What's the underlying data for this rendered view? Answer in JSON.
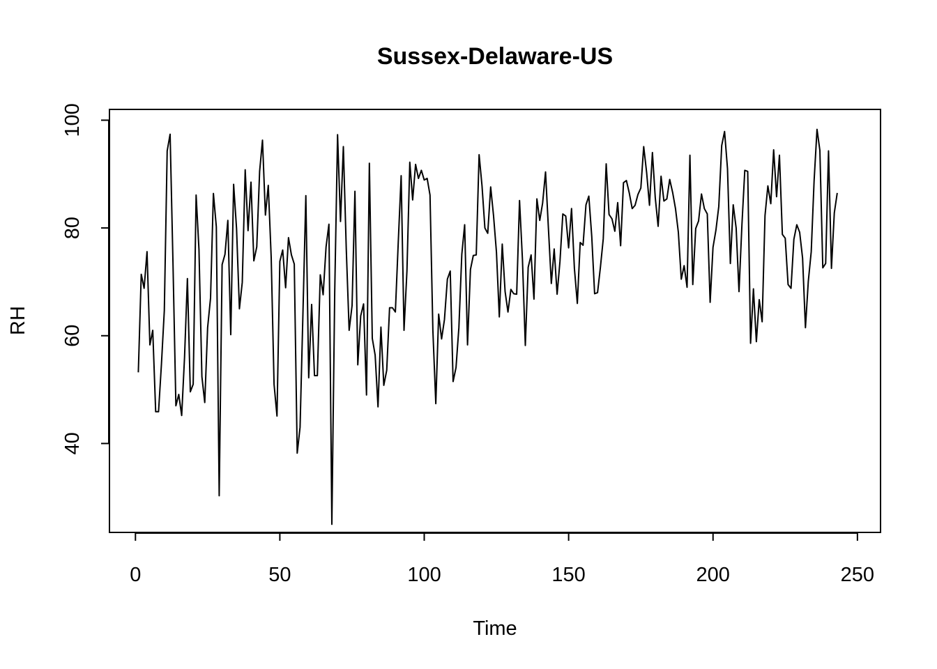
{
  "chart_data": {
    "type": "line",
    "title": "Sussex-Delaware-US",
    "xlabel": "Time",
    "ylabel": "RH",
    "xlim": [
      -9,
      258
    ],
    "ylim": [
      23.5,
      102
    ],
    "x_ticks": [
      0,
      50,
      100,
      150,
      200,
      250
    ],
    "y_ticks": [
      40,
      60,
      80,
      100
    ],
    "grid": false,
    "legend": "none",
    "line_color": "#000000",
    "series": [
      {
        "x_start": 1,
        "values": [
          53.2,
          71.4,
          68.8,
          75.6,
          58.3,
          61.0,
          45.9,
          45.9,
          54.8,
          64.7,
          94.3,
          97.4,
          73.6,
          47.0,
          49.1,
          45.2,
          56.0,
          70.6,
          49.6,
          51.0,
          86.1,
          76.0,
          52.4,
          47.6,
          61.5,
          67.0,
          86.4,
          80.2,
          30.3,
          73.2,
          75.1,
          81.4,
          60.2,
          88.1,
          79.9,
          65.0,
          69.9,
          90.8,
          79.5,
          88.5,
          73.9,
          76.5,
          90.5,
          96.3,
          82.4,
          87.9,
          74.5,
          51.0,
          45.1,
          73.8,
          75.9,
          68.9,
          78.2,
          75.0,
          73.3,
          38.2,
          43.0,
          64.0,
          86.0,
          52.2,
          65.8,
          52.6,
          52.6,
          71.3,
          67.6,
          76.5,
          80.7,
          25.0,
          68.0,
          97.3,
          81.2,
          95.1,
          76.0,
          61.0,
          65.6,
          86.8,
          54.6,
          63.7,
          65.9,
          49.0,
          92.0,
          59.5,
          56.4,
          46.8,
          61.6,
          50.8,
          53.6,
          65.2,
          65.2,
          64.4,
          77.2,
          89.7,
          61.0,
          72.0,
          92.2,
          85.2,
          91.8,
          89.2,
          90.7,
          88.9,
          89.2,
          86.1,
          61.0,
          47.4,
          64.0,
          59.4,
          63.0,
          70.5,
          72.0,
          51.5,
          54.1,
          61.5,
          75.1,
          80.6,
          58.3,
          72.3,
          74.9,
          75.0,
          93.6,
          87.8,
          80.0,
          79.0,
          87.6,
          82.3,
          75.5,
          63.5,
          77.0,
          68.2,
          64.4,
          68.6,
          67.8,
          67.7,
          85.1,
          74.1,
          58.2,
          72.7,
          75.0,
          66.8,
          85.4,
          81.4,
          84.6,
          90.4,
          80.0,
          69.7,
          76.1,
          67.7,
          73.8,
          82.6,
          82.2,
          76.3,
          83.6,
          72.5,
          66.0,
          77.3,
          76.8,
          84.3,
          85.9,
          78.4,
          67.8,
          68.0,
          72.7,
          78.0,
          91.9,
          82.5,
          81.7,
          79.4,
          84.7,
          76.7,
          88.4,
          88.8,
          86.5,
          83.6,
          84.2,
          86.2,
          87.4,
          95.1,
          90.3,
          84.2,
          94.0,
          85.6,
          80.3,
          89.6,
          85.0,
          85.4,
          89.0,
          86.6,
          83.6,
          79.2,
          70.5,
          73.0,
          69.0,
          93.5,
          69.5,
          79.9,
          81.3,
          86.3,
          83.6,
          82.6,
          66.2,
          76.4,
          79.6,
          84.0,
          95.3,
          97.9,
          91.0,
          73.4,
          84.3,
          80.0,
          68.2,
          80.6,
          90.7,
          90.5,
          58.6,
          68.7,
          58.9,
          66.7,
          62.6,
          82.3,
          87.8,
          84.5,
          94.5,
          85.8,
          93.5,
          78.8,
          78.1,
          69.5,
          68.8,
          77.9,
          80.6,
          79.2,
          74.4,
          61.5,
          70.1,
          75.6,
          88.7,
          98.3,
          94.4,
          72.6,
          73.4,
          94.3,
          72.5,
          82.8,
          86.5
        ]
      }
    ]
  }
}
